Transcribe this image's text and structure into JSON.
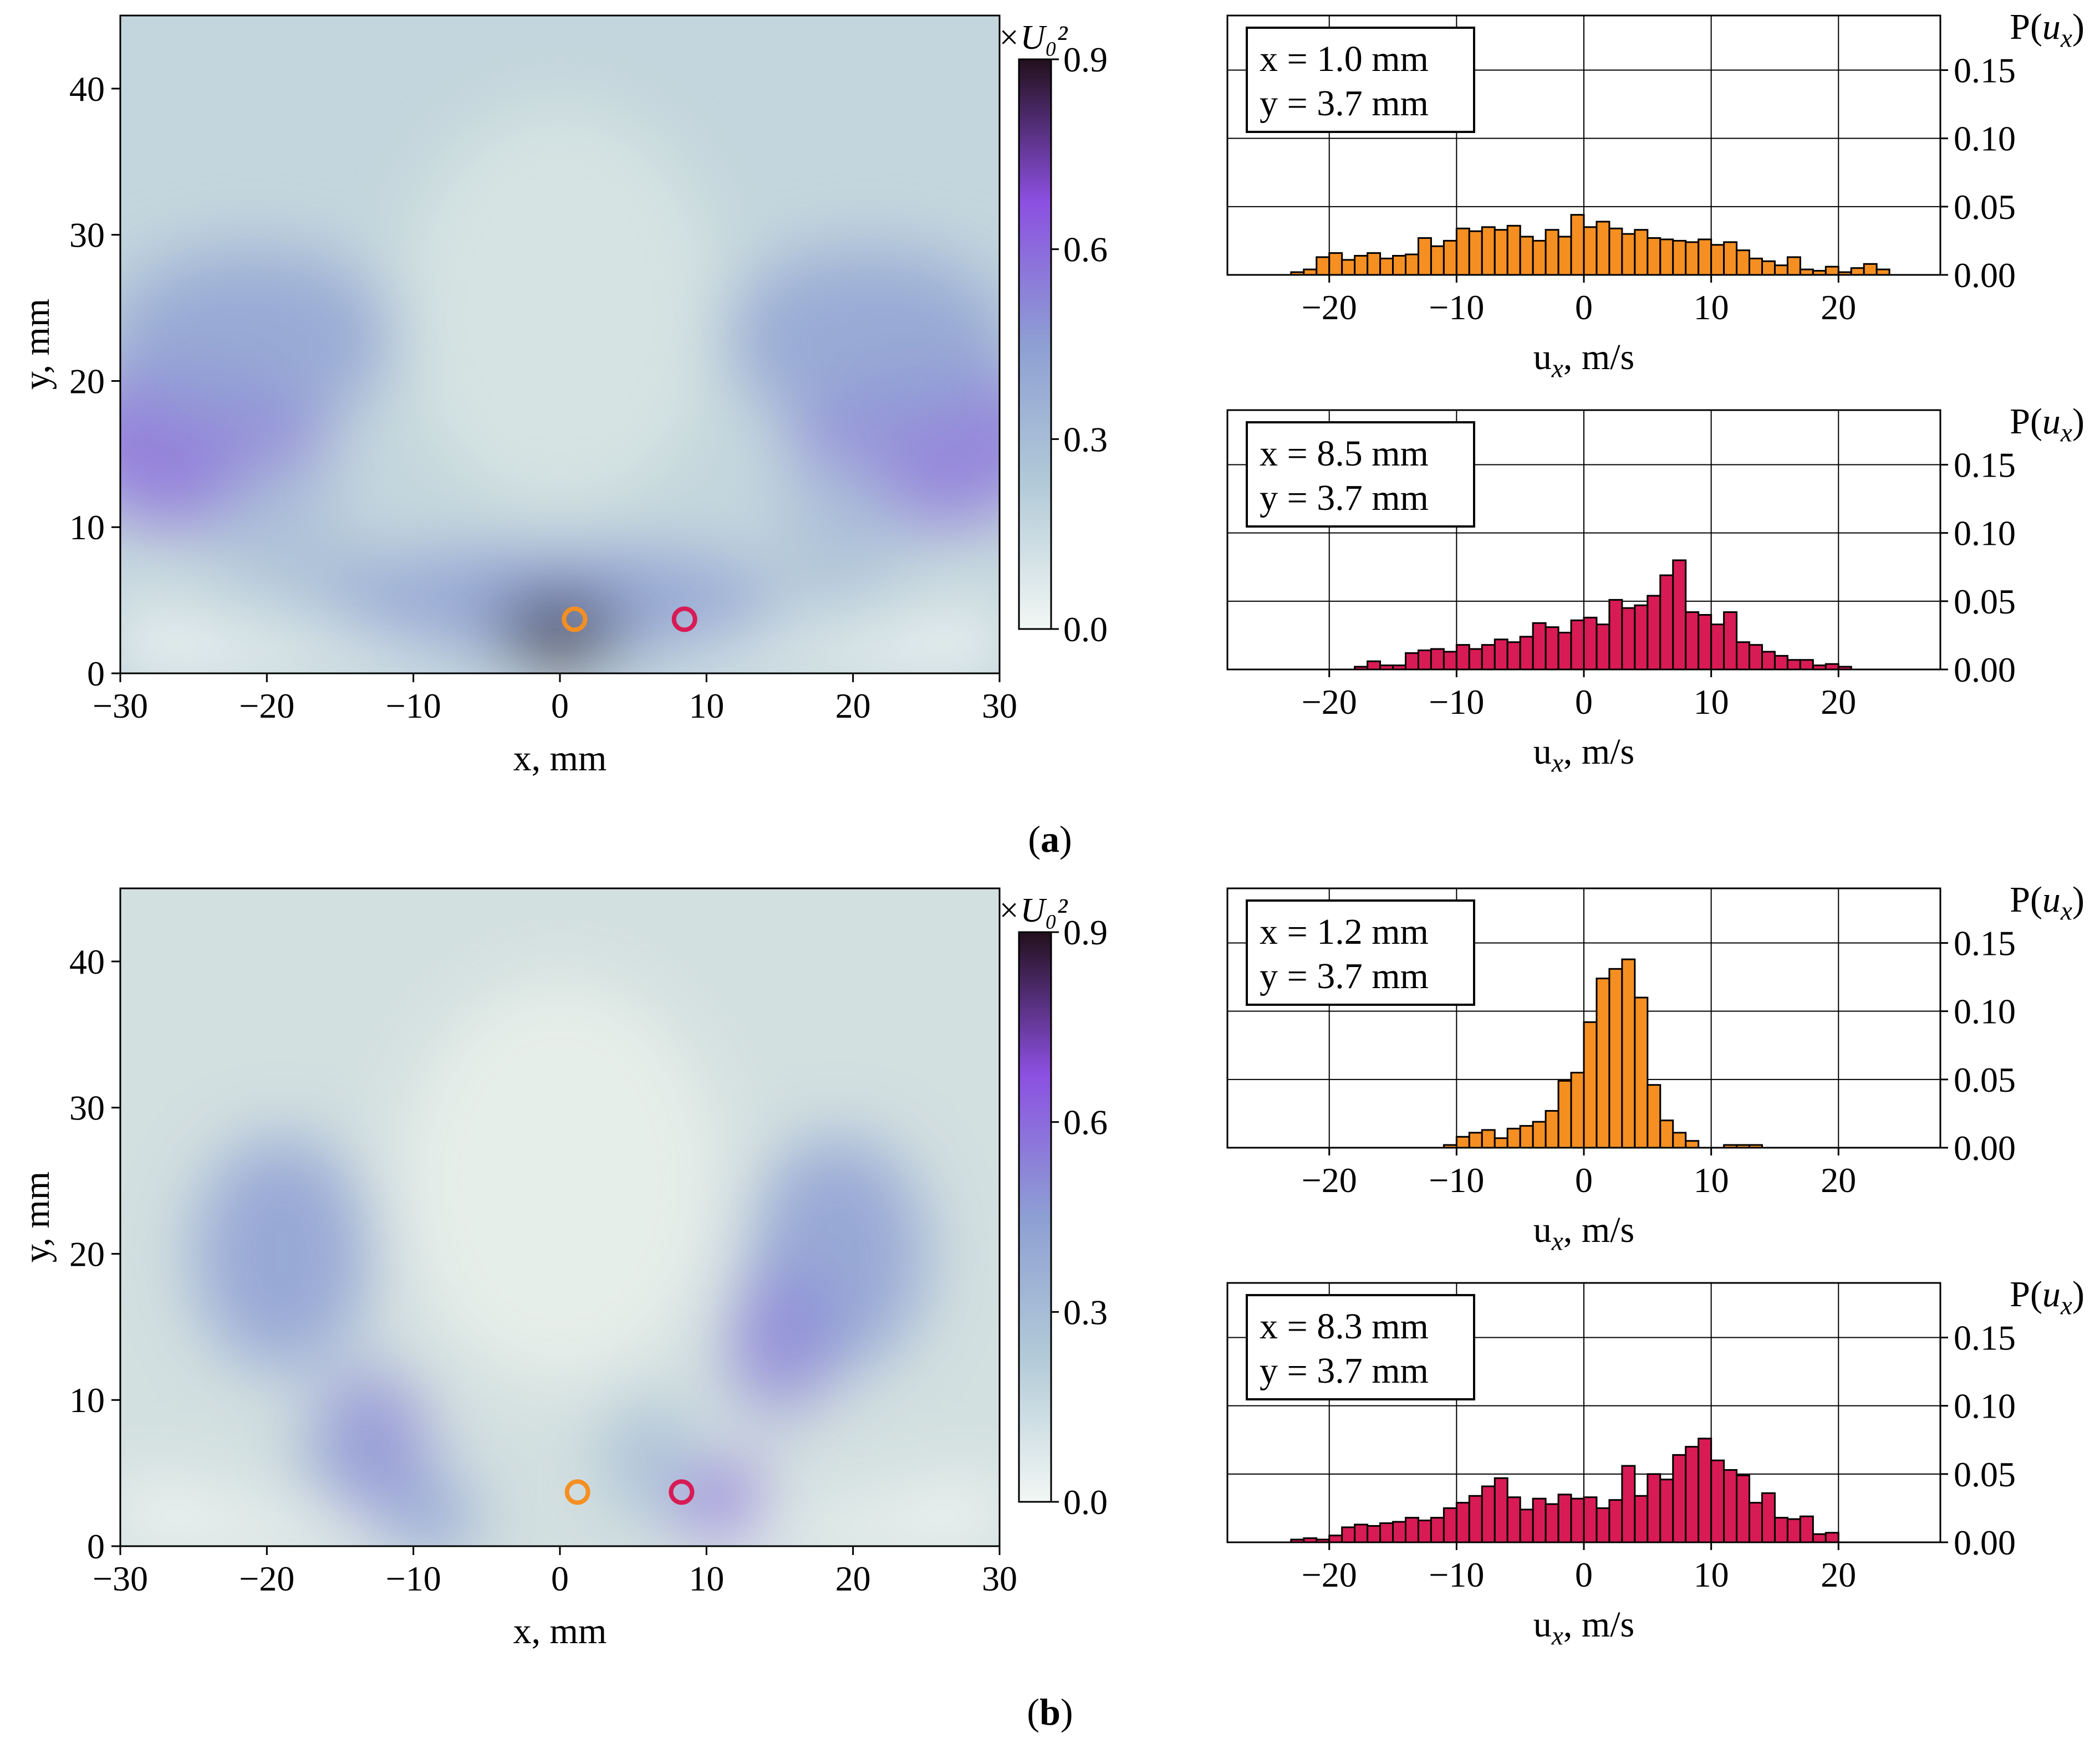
{
  "colors": {
    "orange": "#F58F22",
    "crimson": "#D81B55",
    "cmap_stops": [
      "#f2f7f4",
      "#b3cbd8",
      "#8d9fd3",
      "#8c50e1",
      "#22101c"
    ]
  },
  "panels": [
    {
      "label_text": "(a)",
      "label_bold": "a",
      "map": {
        "type": "heatmap",
        "xlabel": "x, mm",
        "ylabel": "y, mm",
        "xlim": [
          -30,
          30
        ],
        "ylim": [
          0,
          45
        ],
        "xticks": [
          -30,
          -20,
          -10,
          0,
          10,
          20,
          30
        ],
        "xtick_labels": [
          "−30",
          "−20",
          "−10",
          "0",
          "10",
          "20",
          "30"
        ],
        "yticks": [
          0,
          10,
          20,
          30,
          40
        ],
        "ytick_labels": [
          "0",
          "10",
          "20",
          "30",
          "40"
        ],
        "colorbar": {
          "title": "×U₀²",
          "range": [
            0.0,
            0.9
          ],
          "ticks": [
            0.0,
            0.3,
            0.6,
            0.9
          ],
          "tick_labels": [
            "0.0",
            "0.3",
            "0.6",
            "0.9"
          ]
        },
        "markers": [
          {
            "x": 1.0,
            "y": 3.7,
            "color": "orange"
          },
          {
            "x": 8.5,
            "y": 3.7,
            "color": "crimson"
          }
        ],
        "blobs": [
          {
            "x": -25,
            "y": 16,
            "sx": 9,
            "sy": 6,
            "v": 0.58
          },
          {
            "x": 25,
            "y": 16,
            "sx": 9,
            "sy": 6,
            "v": 0.56
          },
          {
            "x": -21,
            "y": 23,
            "sx": 10,
            "sy": 6,
            "v": 0.42
          },
          {
            "x": 21,
            "y": 23,
            "sx": 10,
            "sy": 6,
            "v": 0.42
          },
          {
            "x": 0,
            "y": 5,
            "sx": 15,
            "sy": 3.5,
            "v": 0.45
          },
          {
            "x": 0,
            "y": 3,
            "sx": 4.5,
            "sy": 2,
            "v": 0.95
          },
          {
            "x": -14,
            "y": 6,
            "sx": 2.5,
            "sy": 2,
            "v": 0.4
          },
          {
            "x": -19,
            "y": 10,
            "sx": 4,
            "sy": 5,
            "v": 0.28
          },
          {
            "x": 19,
            "y": 10,
            "sx": 4,
            "sy": 5,
            "v": 0.28
          }
        ]
      },
      "histograms": [
        {
          "x_label": "x = 1.0 mm",
          "y_label": "y = 3.7 mm",
          "color": "orange",
          "xlabel": "ux, m/s",
          "ylabel": "P(ux)",
          "xlim": [
            -28,
            28
          ],
          "ylim": [
            0,
            0.19
          ],
          "xticks": [
            -20,
            -10,
            0,
            10,
            20
          ],
          "xtick_labels": [
            "−20",
            "−10",
            "0",
            "10",
            "20"
          ],
          "yticks": [
            0,
            0.05,
            0.1,
            0.15
          ],
          "ytick_labels": [
            "0.00",
            "0.05",
            "0.10",
            "0.15"
          ],
          "bin_start": -23,
          "bin_width": 1,
          "values": [
            0.002,
            0.004,
            0.013,
            0.016,
            0.011,
            0.014,
            0.016,
            0.012,
            0.014,
            0.015,
            0.027,
            0.021,
            0.025,
            0.034,
            0.032,
            0.035,
            0.033,
            0.036,
            0.028,
            0.025,
            0.033,
            0.028,
            0.044,
            0.035,
            0.039,
            0.034,
            0.03,
            0.033,
            0.027,
            0.026,
            0.025,
            0.024,
            0.026,
            0.022,
            0.024,
            0.018,
            0.012,
            0.01,
            0.007,
            0.013,
            0.004,
            0.003,
            0.006,
            0.002,
            0.005,
            0.008,
            0.004
          ]
        },
        {
          "x_label": "x = 8.5 mm",
          "y_label": "y = 3.7 mm",
          "color": "crimson",
          "xlabel": "ux, m/s",
          "ylabel": "P(ux)",
          "xlim": [
            -28,
            28
          ],
          "ylim": [
            0,
            0.19
          ],
          "xticks": [
            -20,
            -10,
            0,
            10,
            20
          ],
          "xtick_labels": [
            "−20",
            "−10",
            "0",
            "10",
            "20"
          ],
          "yticks": [
            0,
            0.05,
            0.1,
            0.15
          ],
          "ytick_labels": [
            "0.00",
            "0.05",
            "0.10",
            "0.15"
          ],
          "bin_start": -18,
          "bin_width": 1,
          "values": [
            0.002,
            0.006,
            0.003,
            0.003,
            0.012,
            0.014,
            0.015,
            0.013,
            0.018,
            0.015,
            0.018,
            0.022,
            0.02,
            0.024,
            0.034,
            0.031,
            0.027,
            0.036,
            0.038,
            0.033,
            0.051,
            0.045,
            0.047,
            0.054,
            0.069,
            0.08,
            0.042,
            0.04,
            0.033,
            0.042,
            0.02,
            0.018,
            0.013,
            0.01,
            0.007,
            0.007,
            0.003,
            0.004,
            0.002
          ]
        }
      ]
    },
    {
      "label_text": "(b)",
      "label_bold": "b",
      "map": {
        "type": "heatmap",
        "xlabel": "x, mm",
        "ylabel": "y, mm",
        "xlim": [
          -30,
          30
        ],
        "ylim": [
          0,
          45
        ],
        "xticks": [
          -30,
          -20,
          -10,
          0,
          10,
          20,
          30
        ],
        "xtick_labels": [
          "−30",
          "−20",
          "−10",
          "0",
          "10",
          "20",
          "30"
        ],
        "yticks": [
          0,
          10,
          20,
          30,
          40
        ],
        "ytick_labels": [
          "0",
          "10",
          "20",
          "30",
          "40"
        ],
        "colorbar": {
          "title": "×U₀²",
          "range": [
            0.0,
            0.9
          ],
          "ticks": [
            0.0,
            0.3,
            0.6,
            0.9
          ],
          "tick_labels": [
            "0.0",
            "0.3",
            "0.6",
            "0.9"
          ]
        },
        "markers": [
          {
            "x": 1.2,
            "y": 3.7,
            "color": "orange"
          },
          {
            "x": 8.3,
            "y": 3.7,
            "color": "crimson"
          }
        ],
        "blobs": [
          {
            "x": -19,
            "y": 20,
            "sx": 6,
            "sy": 8,
            "v": 0.45
          },
          {
            "x": 19,
            "y": 20,
            "sx": 6,
            "sy": 8,
            "v": 0.45
          },
          {
            "x": -13,
            "y": 7,
            "sx": 4,
            "sy": 5,
            "v": 0.5
          },
          {
            "x": 15,
            "y": 14,
            "sx": 3.5,
            "sy": 5,
            "v": 0.52
          },
          {
            "x": 11,
            "y": 3,
            "sx": 3,
            "sy": 2.5,
            "v": 0.6
          },
          {
            "x": -16,
            "y": 6,
            "sx": 2,
            "sy": 2,
            "v": 0.35
          },
          {
            "x": -9,
            "y": 2,
            "sx": 3.5,
            "sy": 2.5,
            "v": 0.45
          },
          {
            "x": 6,
            "y": 6,
            "sx": 3,
            "sy": 4,
            "v": 0.3
          }
        ]
      },
      "histograms": [
        {
          "x_label": "x = 1.2 mm",
          "y_label": "y = 3.7 mm",
          "color": "orange",
          "xlabel": "ux, m/s",
          "ylabel": "P(ux)",
          "xlim": [
            -28,
            28
          ],
          "ylim": [
            0,
            0.19
          ],
          "xticks": [
            -20,
            -10,
            0,
            10,
            20
          ],
          "xtick_labels": [
            "−20",
            "−10",
            "0",
            "10",
            "20"
          ],
          "yticks": [
            0,
            0.05,
            0.1,
            0.15
          ],
          "ytick_labels": [
            "0.00",
            "0.05",
            "0.10",
            "0.15"
          ],
          "bin_start": -11,
          "bin_width": 1,
          "values": [
            0.002,
            0.008,
            0.011,
            0.013,
            0.007,
            0.014,
            0.016,
            0.019,
            0.027,
            0.049,
            0.055,
            0.092,
            0.124,
            0.131,
            0.138,
            0.11,
            0.046,
            0.02,
            0.011,
            0.005,
            0,
            0,
            0.002,
            0.002,
            0.002
          ]
        },
        {
          "x_label": "x = 8.3 mm",
          "y_label": "y = 3.7 mm",
          "color": "crimson",
          "xlabel": "ux, m/s",
          "ylabel": "P(ux)",
          "xlim": [
            -28,
            28
          ],
          "ylim": [
            0,
            0.19
          ],
          "xticks": [
            -20,
            -10,
            0,
            10,
            20
          ],
          "xtick_labels": [
            "−20",
            "−10",
            "0",
            "10",
            "20"
          ],
          "yticks": [
            0,
            0.05,
            0.1,
            0.15
          ],
          "ytick_labels": [
            "0.00",
            "0.05",
            "0.10",
            "0.15"
          ],
          "bin_start": -23,
          "bin_width": 1,
          "values": [
            0.002,
            0.003,
            0.002,
            0.005,
            0.011,
            0.013,
            0.012,
            0.014,
            0.015,
            0.018,
            0.016,
            0.018,
            0.025,
            0.029,
            0.034,
            0.041,
            0.047,
            0.033,
            0.024,
            0.032,
            0.028,
            0.035,
            0.032,
            0.033,
            0.025,
            0.031,
            0.056,
            0.034,
            0.05,
            0.046,
            0.064,
            0.07,
            0.076,
            0.06,
            0.053,
            0.049,
            0.029,
            0.036,
            0.018,
            0.017,
            0.019,
            0.006,
            0.007
          ]
        }
      ]
    }
  ]
}
